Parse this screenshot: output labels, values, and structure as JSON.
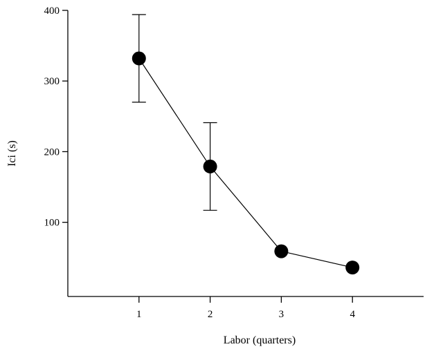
{
  "chart_data": {
    "type": "line",
    "xlabel": "Labor (quarters)",
    "ylabel": "Ici (s)",
    "x_ticks": [
      1,
      2,
      3,
      4
    ],
    "y_ticks": [
      100,
      200,
      300,
      400
    ],
    "xlim": [
      0.0,
      5.0
    ],
    "ylim": [
      -5,
      400
    ],
    "x": [
      1,
      2,
      3,
      4
    ],
    "y": [
      332,
      179,
      59,
      36
    ],
    "error": [
      62,
      62,
      0,
      0
    ],
    "marker_color": "#000000"
  }
}
